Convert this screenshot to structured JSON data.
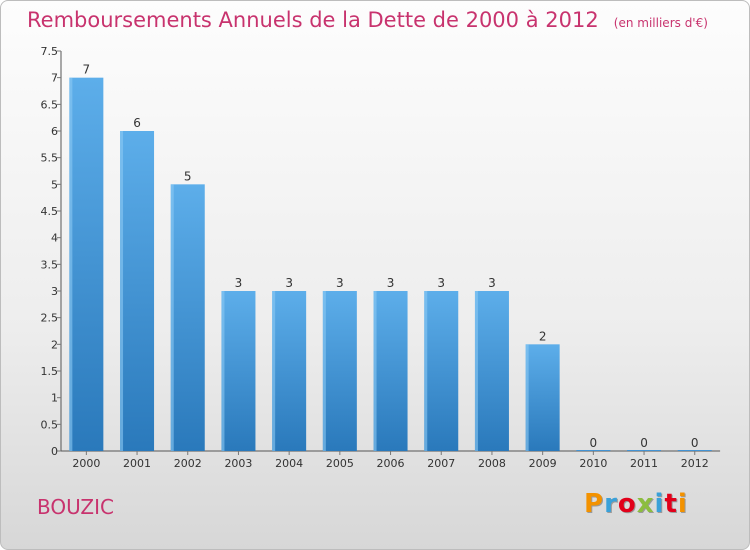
{
  "header": {
    "title": "Remboursements Annuels de la Dette de 2000 à 2012",
    "subtitle": "(en milliers d'€)"
  },
  "footer": {
    "city": "BOUZIC",
    "brand": "Proxiti",
    "brand_colors": [
      "#f39200",
      "#3aa1d9",
      "#e2001a",
      "#8cbd3f",
      "#3aa1d9",
      "#e2001a",
      "#f39200"
    ]
  },
  "colors": {
    "title": "#c8336e",
    "bar_light": "#5daeea",
    "bar_dark": "#2a79bb",
    "axis": "#555555",
    "grid_tick": "#777777"
  },
  "chart_data": {
    "type": "bar",
    "categories": [
      "2000",
      "2001",
      "2002",
      "2003",
      "2004",
      "2005",
      "2006",
      "2007",
      "2008",
      "2009",
      "2010",
      "2011",
      "2012"
    ],
    "values": [
      7,
      6,
      5,
      3,
      3,
      3,
      3,
      3,
      3,
      2,
      0,
      0,
      0
    ],
    "data_labels": [
      "7",
      "6",
      "5",
      "3",
      "3",
      "3",
      "3",
      "3",
      "3",
      "2",
      "0",
      "0",
      "0"
    ],
    "yticks": [
      "0",
      "0.5",
      "1",
      "1.5",
      "2",
      "2.5",
      "3",
      "3.5",
      "4",
      "4.5",
      "5",
      "5.5",
      "6",
      "6.5",
      "7",
      "7.5"
    ],
    "ylim": [
      0,
      7.5
    ],
    "grid": false,
    "legend": "none"
  }
}
